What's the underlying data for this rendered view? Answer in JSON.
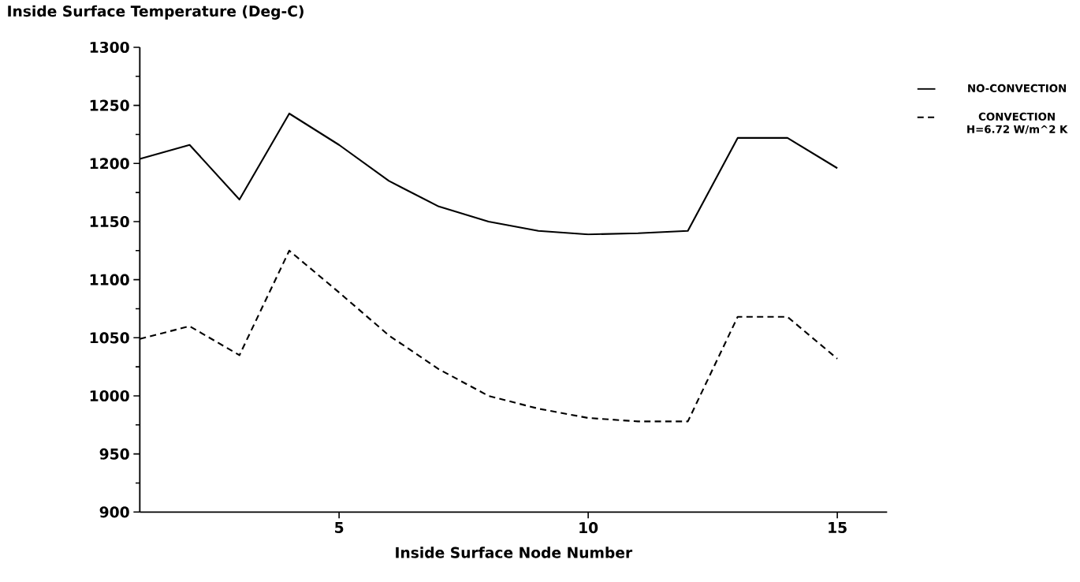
{
  "chart_data": {
    "type": "line",
    "xlabel": "Inside Surface Node Number",
    "ylabel": "Inside Surface Temperature (Deg-C)",
    "x": [
      1,
      2,
      3,
      4,
      5,
      6,
      7,
      8,
      9,
      10,
      11,
      12,
      13,
      14,
      15
    ],
    "series": [
      {
        "name": "NO-CONVECTION",
        "color": "#000000",
        "line_style": "solid",
        "values": [
          1204,
          1216,
          1169,
          1243,
          1216,
          1185,
          1163,
          1150,
          1142,
          1139,
          1140,
          1142,
          1222,
          1222,
          1196
        ]
      },
      {
        "name": "CONVECTION H=6.72 W/m^2 K",
        "color": "#000000",
        "line_style": "dashed",
        "values": [
          1049,
          1060,
          1035,
          1125,
          1089,
          1052,
          1023,
          1000,
          989,
          981,
          978,
          978,
          1068,
          1068,
          1032
        ]
      }
    ],
    "xlim": [
      1,
      16
    ],
    "ylim": [
      900,
      1300
    ],
    "xticks": [
      5,
      10,
      15
    ],
    "yticks": [
      900,
      950,
      1000,
      1050,
      1100,
      1150,
      1200,
      1250,
      1300
    ],
    "grid": false,
    "legend": "right",
    "marker": "none"
  }
}
